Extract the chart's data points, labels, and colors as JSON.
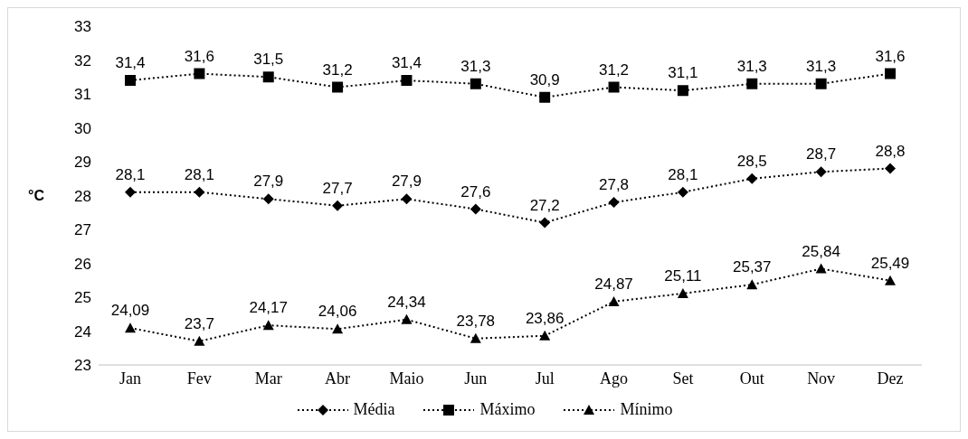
{
  "chart_data": {
    "type": "line",
    "ylabel": "°C",
    "categories": [
      "Jan",
      "Fev",
      "Mar",
      "Abr",
      "Maio",
      "Jun",
      "Jul",
      "Ago",
      "Set",
      "Out",
      "Nov",
      "Dez"
    ],
    "series": [
      {
        "name": "Média",
        "color": "#000000",
        "marker": "diamond",
        "values": [
          28.1,
          28.1,
          27.9,
          27.7,
          27.9,
          27.6,
          27.2,
          27.8,
          28.1,
          28.5,
          28.7,
          28.8
        ],
        "value_labels": [
          "28,1",
          "28,1",
          "27,9",
          "27,7",
          "27,9",
          "27,6",
          "27,2",
          "27,8",
          "28,1",
          "28,5",
          "28,7",
          "28,8"
        ]
      },
      {
        "name": "Máximo",
        "color": "#000000",
        "marker": "square",
        "values": [
          31.4,
          31.6,
          31.5,
          31.2,
          31.4,
          31.3,
          30.9,
          31.2,
          31.1,
          31.3,
          31.3,
          31.6
        ],
        "value_labels": [
          "31,4",
          "31,6",
          "31,5",
          "31,2",
          "31,4",
          "31,3",
          "30,9",
          "31,2",
          "31,1",
          "31,3",
          "31,3",
          "31,6"
        ]
      },
      {
        "name": "Mínimo",
        "color": "#000000",
        "marker": "triangle",
        "values": [
          24.09,
          23.7,
          24.17,
          24.06,
          24.34,
          23.78,
          23.86,
          24.87,
          25.11,
          25.37,
          25.84,
          25.49
        ],
        "value_labels": [
          "24,09",
          "23,7",
          "24,17",
          "24,06",
          "24,34",
          "23,78",
          "23,86",
          "24,87",
          "25,11",
          "25,37",
          "25,84",
          "25,49"
        ]
      }
    ],
    "ylim": [
      23,
      33
    ],
    "yticks": [
      23,
      24,
      25,
      26,
      27,
      28,
      29,
      30,
      31,
      32,
      33
    ],
    "legend": "bottom",
    "line_style": "dotted"
  }
}
